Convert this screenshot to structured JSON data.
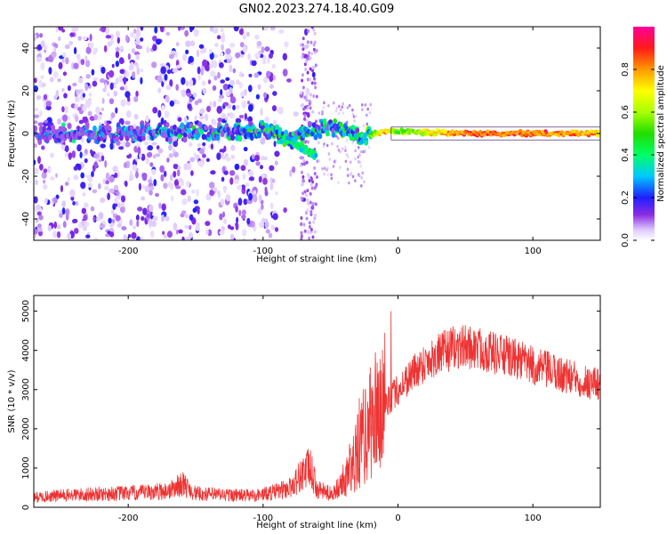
{
  "figure": {
    "title": "GN02.2023.274.18.40.G09"
  },
  "chart_data": [
    {
      "type": "heatmap",
      "xlabel": "Height of straight line (km)",
      "ylabel": "Frequency (Hz)",
      "xlim": [
        -270,
        150
      ],
      "ylim": [
        -50,
        50
      ],
      "x_ticks": [
        -200,
        -100,
        0,
        100
      ],
      "y_ticks": [
        -40,
        -20,
        0,
        20,
        40
      ],
      "x_tick_labels": [
        "-200",
        "-100",
        "0",
        "100"
      ],
      "y_tick_labels": [
        "-40",
        "-20",
        "0",
        "20",
        "40"
      ],
      "colorbar": {
        "label": "Normalized spectral amplitude",
        "range": [
          0,
          1
        ],
        "ticks": [
          0.0,
          0.2,
          0.4,
          0.6,
          0.8
        ],
        "tick_labels": [
          "0.0",
          "0.2",
          "0.4",
          "0.6",
          "0.8"
        ],
        "colormap": "gist_ncar-like (white, violet, blue, cyan, green, yellow, orange, red, magenta)"
      },
      "description_ridge": [
        {
          "x": -260,
          "f": 0,
          "amp": 0.25
        },
        {
          "x": -200,
          "f": 0,
          "amp": 0.3
        },
        {
          "x": -170,
          "f": 0,
          "amp": 0.35
        },
        {
          "x": -130,
          "f": 1,
          "amp": 0.4
        },
        {
          "x": -100,
          "f": 2,
          "amp": 0.45
        },
        {
          "x": -80,
          "f": -3,
          "amp": 0.45
        },
        {
          "x": -60,
          "f": 2,
          "amp": 0.4
        },
        {
          "x": -40,
          "f": 2,
          "amp": 0.45
        },
        {
          "x": -25,
          "f": -1,
          "amp": 0.5
        },
        {
          "x": -10,
          "f": 1,
          "amp": 0.85
        },
        {
          "x": 0,
          "f": 1,
          "amp": 0.6
        },
        {
          "x": 50,
          "f": 0,
          "amp": 0.92
        },
        {
          "x": 100,
          "f": 0,
          "amp": 0.92
        },
        {
          "x": 150,
          "f": 0,
          "amp": 0.85
        }
      ]
    },
    {
      "type": "line",
      "xlabel": "Height of straight line (km)",
      "ylabel": "SNR (10 * v/v)",
      "xlim": [
        -270,
        150
      ],
      "ylim": [
        0,
        5400
      ],
      "x_ticks": [
        -200,
        -100,
        0,
        100
      ],
      "y_ticks": [
        0,
        1000,
        2000,
        3000,
        4000,
        5000
      ],
      "x_tick_labels": [
        "-200",
        "-100",
        "0",
        "100"
      ],
      "y_tick_labels": [
        "0",
        "1000",
        "2000",
        "3000",
        "4000",
        "5000"
      ],
      "color": "#ee3333",
      "series": [
        {
          "x": [
            -270,
            -250,
            -230,
            -210,
            -190,
            -170,
            -160,
            -150,
            -130,
            -110,
            -100,
            -90,
            -80,
            -70,
            -65,
            -60,
            -50,
            -40,
            -30,
            -20,
            -10,
            0,
            10,
            20,
            30,
            40,
            50,
            60,
            70,
            80,
            90,
            100,
            110,
            120,
            130,
            140,
            150
          ],
          "y": [
            250,
            300,
            330,
            350,
            370,
            420,
            600,
            350,
            320,
            300,
            330,
            400,
            500,
            900,
            1000,
            450,
            350,
            600,
            1400,
            2100,
            2600,
            3000,
            3400,
            3700,
            3900,
            4050,
            4100,
            4050,
            3950,
            3850,
            3750,
            3600,
            3500,
            3400,
            3300,
            3200,
            3150
          ]
        }
      ]
    }
  ]
}
